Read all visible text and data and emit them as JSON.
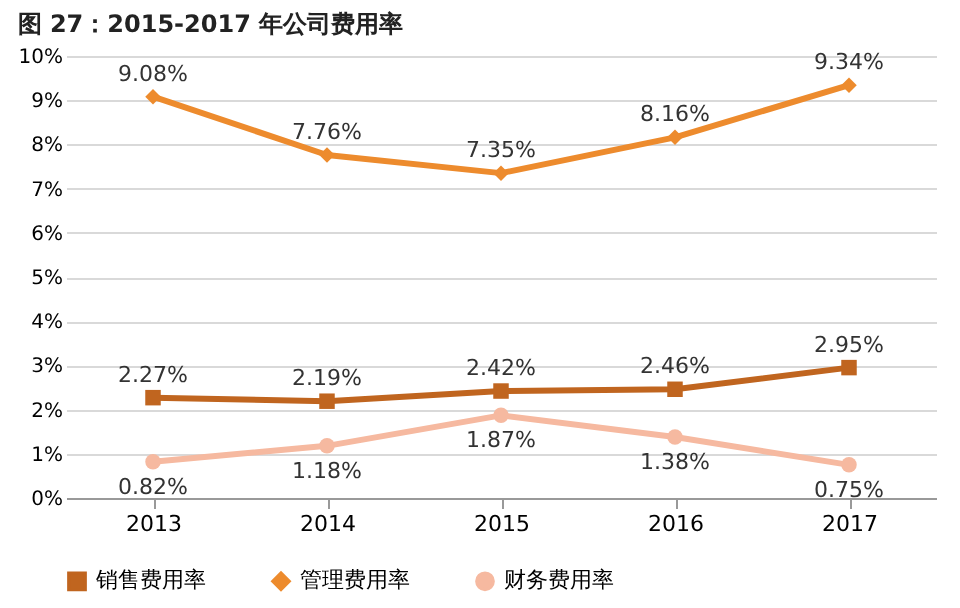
{
  "chart_data": {
    "type": "line",
    "title": "图 27：2015-2017 年公司费用率",
    "categories": [
      "2013",
      "2014",
      "2015",
      "2016",
      "2017"
    ],
    "series": [
      {
        "name": "销售费用率",
        "color": "#c0651f",
        "marker": "square",
        "values": [
          2.27,
          2.19,
          2.42,
          2.46,
          2.95
        ],
        "value_labels": [
          "2.27%",
          "2.19%",
          "2.42%",
          "2.46%",
          "2.95%"
        ]
      },
      {
        "name": "管理费用率",
        "color": "#ed8b2d",
        "marker": "diamond",
        "values": [
          9.08,
          7.76,
          7.35,
          8.16,
          9.34
        ],
        "value_labels": [
          "9.08%",
          "7.76%",
          "7.35%",
          "8.16%",
          "9.34%"
        ]
      },
      {
        "name": "财务费用率",
        "color": "#f6b9a0",
        "marker": "circle",
        "values": [
          0.82,
          1.18,
          1.87,
          1.38,
          0.75
        ],
        "value_labels": [
          "0.82%",
          "1.18%",
          "1.87%",
          "1.38%",
          "0.75%"
        ]
      }
    ],
    "ylim": [
      0,
      10
    ],
    "yticks": [
      {
        "value": 0,
        "label": "0%"
      },
      {
        "value": 1,
        "label": "1%"
      },
      {
        "value": 2,
        "label": "2%"
      },
      {
        "value": 3,
        "label": "3%"
      },
      {
        "value": 4,
        "label": "4%"
      },
      {
        "value": 5,
        "label": "5%"
      },
      {
        "value": 6,
        "label": "6%"
      },
      {
        "value": 7,
        "label": "7%"
      },
      {
        "value": 8,
        "label": "8%"
      },
      {
        "value": 9,
        "label": "9%"
      },
      {
        "value": 10,
        "label": "10%"
      }
    ],
    "grid": "y",
    "legend": "bottom",
    "line_style": "solid"
  }
}
